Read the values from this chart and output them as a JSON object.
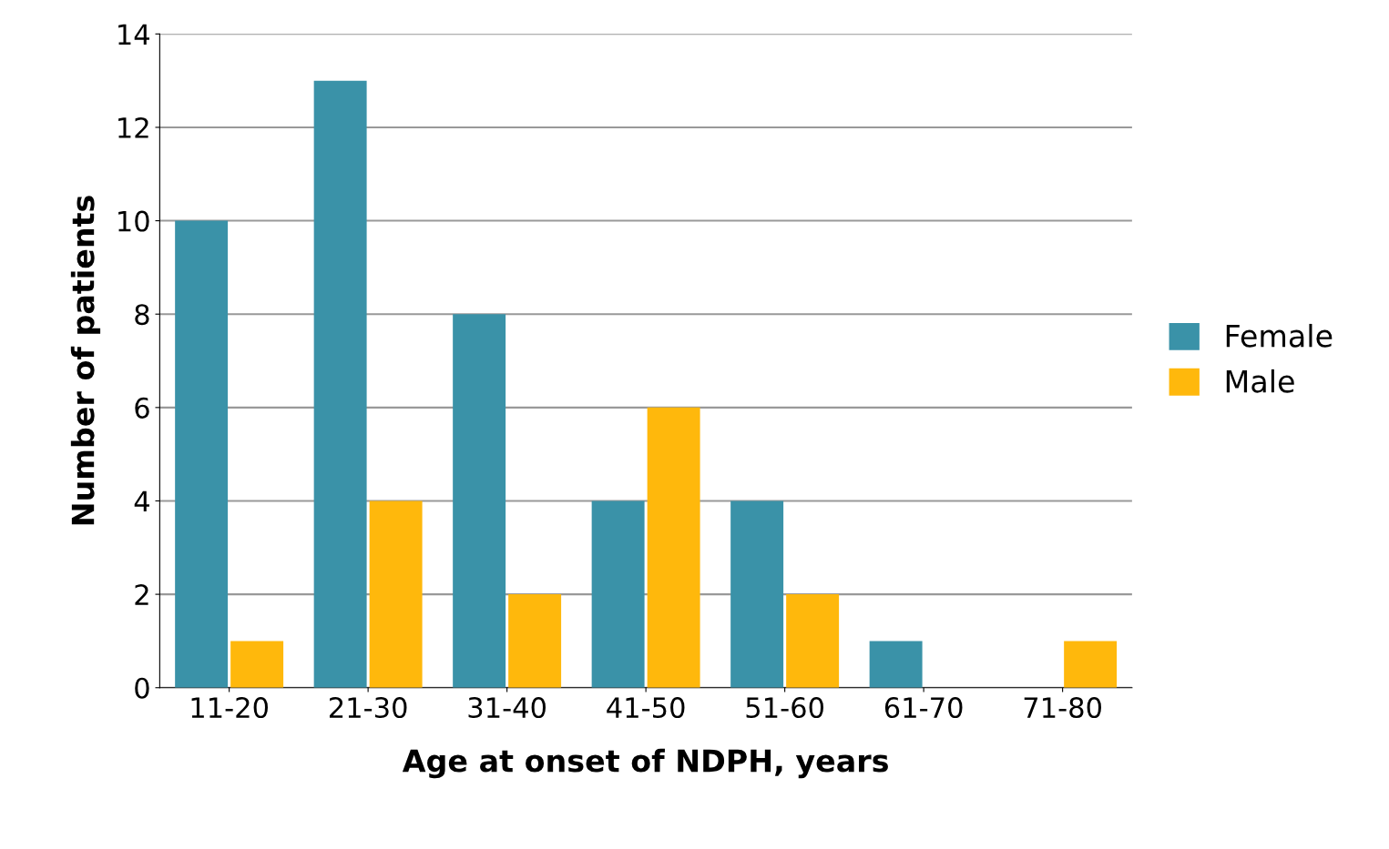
{
  "chart_data": {
    "type": "bar",
    "xlabel": "Age at onset of NDPH, years",
    "ylabel": "Number of patients",
    "categories": [
      "11-20",
      "21-30",
      "31-40",
      "41-50",
      "51-60",
      "61-70",
      "71-80"
    ],
    "series": [
      {
        "name": "Female",
        "color": "#3a92a8",
        "values": [
          10,
          13,
          8,
          4,
          4,
          1,
          0
        ]
      },
      {
        "name": "Male",
        "color": "#ffb80c",
        "values": [
          1,
          4,
          2,
          6,
          2,
          0,
          1
        ]
      }
    ],
    "ylim": [
      0,
      14
    ],
    "yticks": [
      0,
      2,
      4,
      6,
      8,
      10,
      12,
      14
    ],
    "grid": "y",
    "legend": "right"
  }
}
